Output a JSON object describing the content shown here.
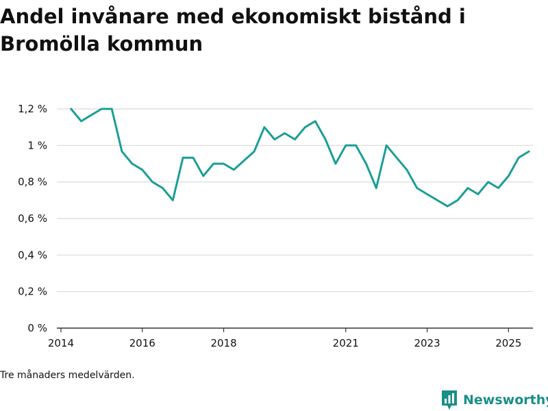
{
  "colors": {
    "line": "#1a9e96",
    "grid": "#d9d9d9",
    "axis": "#333333",
    "brand": "#1a8e87",
    "text": "#111111"
  },
  "note": "Tre månaders medelvärden.",
  "brand": {
    "name": "Newsworthy",
    "icon": "bar-chart-icon"
  },
  "chart_data": {
    "type": "line",
    "title": "Andel invånare med ekonomiskt bistånd i Bromölla kommun",
    "xlabel": "",
    "ylabel": "",
    "ylim": [
      0,
      1.2
    ],
    "xlim": [
      2013.9,
      2025.6
    ],
    "yticks": [
      0,
      0.2,
      0.4,
      0.6,
      0.8,
      1.0,
      1.2
    ],
    "ytick_labels": [
      "0 %",
      "0,2 %",
      "0,4 %",
      "0,6 %",
      "0,8 %",
      "1 %",
      "1,2 %"
    ],
    "xticks": [
      2014,
      2016,
      2018,
      2021,
      2023,
      2025
    ],
    "xtick_labels": [
      "2014",
      "2016",
      "2018",
      "2021",
      "2023",
      "2025"
    ],
    "grid": true,
    "legend": "none",
    "series": [
      {
        "name": "Andel invånare med ekonomiskt bistånd",
        "x": [
          2014.25,
          2014.5,
          2014.75,
          2015.0,
          2015.25,
          2015.5,
          2015.75,
          2016.0,
          2016.25,
          2016.5,
          2016.75,
          2017.0,
          2017.25,
          2017.5,
          2017.75,
          2018.0,
          2018.25,
          2018.5,
          2018.75,
          2019.0,
          2019.25,
          2019.5,
          2019.75,
          2020.0,
          2020.25,
          2020.5,
          2020.75,
          2021.0,
          2021.25,
          2021.5,
          2021.75,
          2022.0,
          2022.25,
          2022.5,
          2022.75,
          2023.0,
          2023.25,
          2023.5,
          2023.75,
          2024.0,
          2024.25,
          2024.5,
          2024.75,
          2025.0,
          2025.25,
          2025.5
        ],
        "values": [
          1.2,
          1.133,
          1.167,
          1.2,
          1.2,
          0.967,
          0.9,
          0.867,
          0.8,
          0.767,
          0.7,
          0.933,
          0.933,
          0.833,
          0.9,
          0.9,
          0.867,
          0.917,
          0.967,
          1.1,
          1.033,
          1.067,
          1.033,
          1.1,
          1.133,
          1.033,
          0.9,
          1.0,
          1.0,
          0.9,
          0.767,
          1.0,
          0.933,
          0.867,
          0.767,
          0.733,
          0.7,
          0.667,
          0.7,
          0.767,
          0.733,
          0.8,
          0.767,
          0.833,
          0.933,
          0.967
        ]
      }
    ]
  }
}
